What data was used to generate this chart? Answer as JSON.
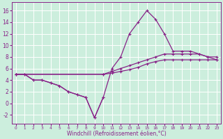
{
  "x": [
    0,
    1,
    2,
    3,
    4,
    5,
    6,
    7,
    8,
    9,
    10,
    11,
    12,
    13,
    14,
    15,
    16,
    17,
    18,
    19,
    20,
    21,
    22,
    23
  ],
  "line_main": [
    5,
    5,
    4,
    4,
    3.5,
    3,
    2,
    1.5,
    1,
    -2.5,
    1,
    6,
    8,
    12,
    14,
    16,
    14.5,
    12,
    9,
    9,
    9,
    8.5,
    8,
    7.5
  ],
  "line_low": [
    5,
    5,
    4,
    4,
    3.5,
    3,
    2,
    1.5,
    1,
    -2.5,
    1,
    null,
    null,
    null,
    null,
    null,
    null,
    null,
    null,
    null,
    null,
    null,
    null,
    null
  ],
  "line_upper_x": [
    0,
    10,
    11,
    12,
    13,
    14,
    15,
    16,
    17,
    18,
    19,
    20,
    21,
    22,
    23
  ],
  "line_upper_y": [
    5,
    5,
    5.5,
    6,
    6.5,
    7,
    7.5,
    8,
    8.5,
    8.5,
    8.5,
    8.5,
    8.5,
    8,
    8
  ],
  "line_lower_x": [
    0,
    10,
    11,
    12,
    13,
    14,
    15,
    16,
    17,
    18,
    19,
    20,
    21,
    22,
    23
  ],
  "line_lower_y": [
    5,
    5,
    5.2,
    5.5,
    5.8,
    6.2,
    6.8,
    7.2,
    7.5,
    7.5,
    7.5,
    7.5,
    7.5,
    7.5,
    7.5
  ],
  "color": "#882288",
  "bg_color": "#cceedd",
  "grid_color": "#ffffff",
  "ylim": [
    -3.5,
    17.5
  ],
  "xlim": [
    -0.5,
    23.5
  ],
  "yticks": [
    -2,
    0,
    2,
    4,
    6,
    8,
    10,
    12,
    14,
    16
  ],
  "xticks": [
    0,
    1,
    2,
    3,
    4,
    5,
    6,
    7,
    8,
    9,
    10,
    11,
    12,
    13,
    14,
    15,
    16,
    17,
    18,
    19,
    20,
    21,
    22,
    23
  ],
  "xlabel": "Windchill (Refroidissement éolien,°C)",
  "marker": "+",
  "markersize": 3.5,
  "markeredgewidth": 0.8,
  "linewidth": 0.9
}
